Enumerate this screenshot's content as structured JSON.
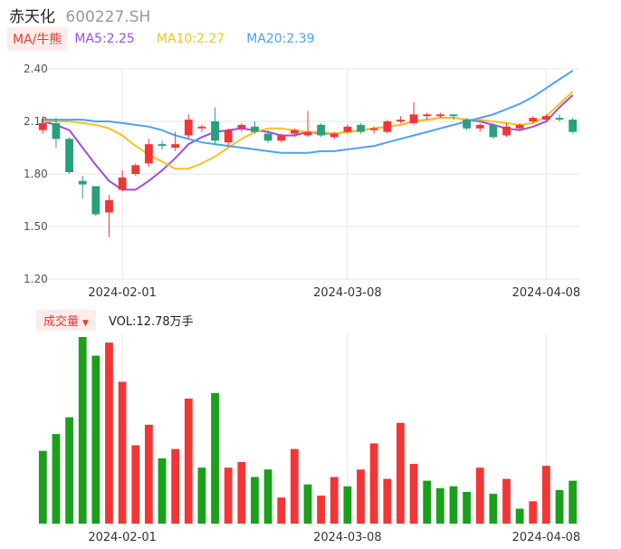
{
  "header": {
    "name": "赤天化",
    "code": "600227.SH"
  },
  "legend": {
    "ma_button": "MA/牛熊",
    "ma5": "MA5:2.25",
    "ma10": "MA10:2.27",
    "ma20": "MA20:2.39"
  },
  "volume_header": {
    "button": "成交量",
    "text": "VOL:12.78万手"
  },
  "colors": {
    "up": "#f23636",
    "down": "#26a17b",
    "vol_down": "#1aa01a",
    "ma5": "#a04be6",
    "ma10": "#f7c21a",
    "ma20": "#4aa3ee",
    "grid": "#e6e6e6"
  },
  "chart_data": [
    {
      "type": "candlestick",
      "ylim": [
        1.2,
        2.4
      ],
      "yticks": [
        "2.40",
        "2.10",
        "1.80",
        "1.50",
        "1.20"
      ],
      "xtick_labels": [
        {
          "label": "2024-02-01",
          "index": 6
        },
        {
          "label": "2024-03-08",
          "index": 23
        },
        {
          "label": "2024-04-08",
          "index": 38
        }
      ],
      "ohlc": [
        [
          2.05,
          2.09,
          2.13,
          2.03
        ],
        [
          2.09,
          2.0,
          2.12,
          1.95
        ],
        [
          2.0,
          1.81,
          2.01,
          1.8
        ],
        [
          1.76,
          1.74,
          1.79,
          1.66
        ],
        [
          1.73,
          1.57,
          1.73,
          1.56
        ],
        [
          1.58,
          1.65,
          1.68,
          1.44
        ],
        [
          1.71,
          1.78,
          1.82,
          1.7
        ],
        [
          1.8,
          1.85,
          1.86,
          1.79
        ],
        [
          1.86,
          1.97,
          2.0,
          1.84
        ],
        [
          1.97,
          1.96,
          1.99,
          1.94
        ],
        [
          1.95,
          1.97,
          2.04,
          1.93
        ],
        [
          2.02,
          2.11,
          2.14,
          2.0
        ],
        [
          2.06,
          2.07,
          2.08,
          2.04
        ],
        [
          2.1,
          1.99,
          2.18,
          1.97
        ],
        [
          1.98,
          2.05,
          2.06,
          1.96
        ],
        [
          2.06,
          2.08,
          2.09,
          2.04
        ],
        [
          2.07,
          2.04,
          2.1,
          2.03
        ],
        [
          2.03,
          1.99,
          2.05,
          1.98
        ],
        [
          1.99,
          2.02,
          2.03,
          1.98
        ],
        [
          2.03,
          2.05,
          2.06,
          2.01
        ],
        [
          2.02,
          2.04,
          2.16,
          2.01
        ],
        [
          2.08,
          2.02,
          2.09,
          2.01
        ],
        [
          2.01,
          2.03,
          2.04,
          2.0
        ],
        [
          2.04,
          2.07,
          2.08,
          2.03
        ],
        [
          2.08,
          2.04,
          2.09,
          2.03
        ],
        [
          2.05,
          2.06,
          2.07,
          2.03
        ],
        [
          2.04,
          2.1,
          2.11,
          2.03
        ],
        [
          2.1,
          2.11,
          2.13,
          2.09
        ],
        [
          2.09,
          2.14,
          2.21,
          2.08
        ],
        [
          2.13,
          2.14,
          2.15,
          2.11
        ],
        [
          2.13,
          2.14,
          2.15,
          2.12
        ],
        [
          2.14,
          2.13,
          2.14,
          2.11
        ],
        [
          2.11,
          2.06,
          2.12,
          2.05
        ],
        [
          2.06,
          2.08,
          2.09,
          2.04
        ],
        [
          2.08,
          2.01,
          2.09,
          2.0
        ],
        [
          2.02,
          2.07,
          2.09,
          2.01
        ],
        [
          2.06,
          2.08,
          2.09,
          2.05
        ],
        [
          2.1,
          2.12,
          2.13,
          2.09
        ],
        [
          2.11,
          2.13,
          2.14,
          2.1
        ],
        [
          2.12,
          2.11,
          2.14,
          2.1
        ],
        [
          2.11,
          2.04,
          2.12,
          2.03
        ]
      ],
      "series": [
        {
          "name": "MA5",
          "values": [
            2.1,
            2.08,
            2.05,
            1.95,
            1.85,
            1.76,
            1.71,
            1.71,
            1.76,
            1.82,
            1.89,
            1.97,
            2.01,
            2.04,
            2.05,
            2.06,
            2.05,
            2.04,
            2.02,
            2.02,
            2.04,
            2.03,
            2.03,
            2.04,
            2.05,
            2.06,
            2.07,
            2.08,
            2.1,
            2.11,
            2.12,
            2.12,
            2.11,
            2.1,
            2.08,
            2.06,
            2.05,
            2.07,
            2.1,
            2.18,
            2.25
          ]
        },
        {
          "name": "MA10",
          "values": [
            2.1,
            2.1,
            2.1,
            2.09,
            2.08,
            2.06,
            2.02,
            1.96,
            1.91,
            1.87,
            1.83,
            1.83,
            1.86,
            1.9,
            1.95,
            2.0,
            2.04,
            2.06,
            2.06,
            2.05,
            2.04,
            2.04,
            2.03,
            2.04,
            2.05,
            2.06,
            2.07,
            2.08,
            2.1,
            2.11,
            2.12,
            2.12,
            2.11,
            2.11,
            2.1,
            2.09,
            2.08,
            2.09,
            2.13,
            2.2,
            2.27
          ]
        },
        {
          "name": "MA20",
          "values": [
            2.11,
            2.11,
            2.11,
            2.11,
            2.1,
            2.1,
            2.09,
            2.08,
            2.07,
            2.05,
            2.02,
            2.0,
            1.98,
            1.97,
            1.96,
            1.95,
            1.94,
            1.93,
            1.92,
            1.92,
            1.92,
            1.93,
            1.93,
            1.94,
            1.95,
            1.96,
            1.98,
            2.0,
            2.02,
            2.04,
            2.06,
            2.08,
            2.1,
            2.12,
            2.14,
            2.17,
            2.2,
            2.24,
            2.29,
            2.34,
            2.39
          ]
        }
      ]
    },
    {
      "type": "bar",
      "name": "VOL",
      "max": 100,
      "values": [
        39,
        48,
        57,
        100,
        90,
        97,
        76,
        42,
        53,
        35,
        40,
        67,
        30,
        70,
        30,
        33,
        25,
        29,
        14,
        40,
        21,
        15,
        25,
        20,
        29,
        43,
        24,
        54,
        32,
        23,
        19,
        20,
        17,
        30,
        16,
        24,
        8,
        12,
        31,
        18,
        23
      ],
      "up": [
        0,
        0,
        0,
        0,
        0,
        1,
        1,
        1,
        1,
        0,
        1,
        1,
        0,
        0,
        1,
        1,
        0,
        0,
        1,
        1,
        0,
        1,
        1,
        0,
        1,
        1,
        1,
        1,
        1,
        0,
        0,
        0,
        0,
        1,
        0,
        1,
        0,
        1,
        1,
        0,
        0
      ]
    }
  ]
}
